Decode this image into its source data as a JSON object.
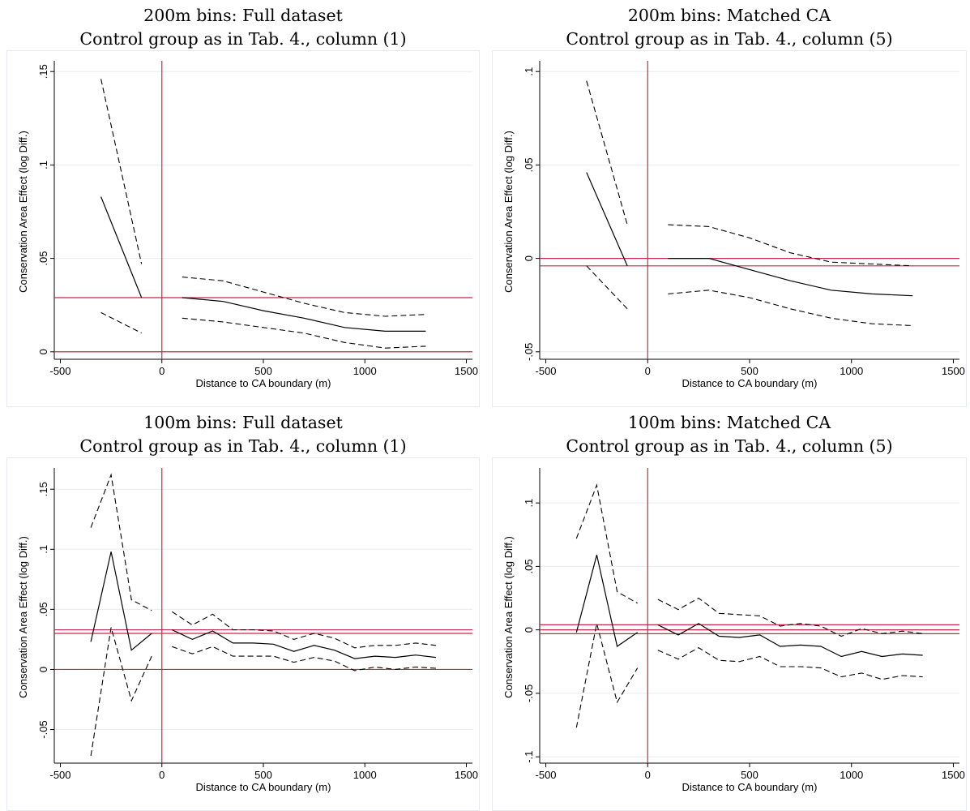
{
  "colors": {
    "accent": "#c8284b",
    "grid": "#e9ecf1",
    "line": "#000000"
  },
  "charts": [
    {
      "title": "200m bins: Full dataset",
      "subtitle": "Control group as in Tab. 4., column (1)",
      "chart_data": {
        "type": "line",
        "xlabel": "Distance to CA boundary (m)",
        "ylabel": "Conservation Area Effect (log Diff.)",
        "xlim": [
          -530,
          1530
        ],
        "ylim": [
          -0.004,
          0.154
        ],
        "xticks": [
          -500,
          0,
          500,
          1000,
          1500
        ],
        "yticks": [
          0,
          0.05,
          0.1,
          0.15
        ],
        "ytick_labels": [
          "0",
          ".05",
          ".1",
          ".15"
        ],
        "hlines": [
          0,
          0.029
        ],
        "vlines": [
          0
        ],
        "segments": [
          {
            "x": [
              -300,
              -100
            ],
            "estimate": [
              0.083,
              0.029
            ],
            "lower": [
              0.021,
              0.01
            ],
            "upper": [
              0.146,
              0.047
            ]
          },
          {
            "x": [
              100,
              300,
              500,
              700,
              900,
              1100,
              1300
            ],
            "estimate": [
              0.029,
              0.027,
              0.022,
              0.018,
              0.013,
              0.011,
              0.011
            ],
            "lower": [
              0.018,
              0.016,
              0.013,
              0.01,
              0.005,
              0.002,
              0.003
            ],
            "upper": [
              0.04,
              0.038,
              0.032,
              0.026,
              0.021,
              0.019,
              0.02
            ]
          }
        ]
      }
    },
    {
      "title": "200m bins: Matched CA",
      "subtitle": "Control group as in Tab. 4., column (5)",
      "chart_data": {
        "type": "line",
        "xlabel": "Distance to CA boundary (m)",
        "ylabel": "Conservation Area Effect (log Diff.)",
        "xlim": [
          -530,
          1530
        ],
        "ylim": [
          -0.054,
          0.104
        ],
        "xticks": [
          -500,
          0,
          500,
          1000,
          1500
        ],
        "yticks": [
          -0.05,
          0,
          0.05,
          0.1
        ],
        "ytick_labels": [
          "-.05",
          "0",
          ".05",
          ".1"
        ],
        "hlines": [
          0,
          -0.004
        ],
        "vlines": [
          0
        ],
        "segments": [
          {
            "x": [
              -300,
              -100
            ],
            "estimate": [
              0.046,
              -0.004
            ],
            "lower": [
              -0.004,
              -0.027
            ],
            "upper": [
              0.095,
              0.018
            ]
          },
          {
            "x": [
              100,
              300,
              500,
              700,
              900,
              1100,
              1300
            ],
            "estimate": [
              0.0,
              0.0,
              -0.006,
              -0.012,
              -0.017,
              -0.019,
              -0.02
            ],
            "lower": [
              -0.019,
              -0.017,
              -0.021,
              -0.027,
              -0.032,
              -0.035,
              -0.036
            ],
            "upper": [
              0.018,
              0.017,
              0.011,
              0.003,
              -0.002,
              -0.003,
              -0.004
            ]
          }
        ]
      }
    },
    {
      "title": "100m bins: Full dataset",
      "subtitle": "Control group as in Tab. 4., column (1)",
      "chart_data": {
        "type": "line",
        "xlabel": "Distance to CA boundary (m)",
        "ylabel": "Conservation Area Effect (log Diff.)",
        "xlim": [
          -530,
          1530
        ],
        "ylim": [
          -0.078,
          0.165
        ],
        "xticks": [
          -500,
          0,
          500,
          1000,
          1500
        ],
        "yticks": [
          -0.05,
          0,
          0.05,
          0.1,
          0.15
        ],
        "ytick_labels": [
          "-.05",
          "0",
          ".05",
          ".1",
          ".15"
        ],
        "hlines": [
          0,
          0.03,
          0.033
        ],
        "vlines": [
          0
        ],
        "segments": [
          {
            "x": [
              -350,
              -250,
              -150,
              -50
            ],
            "estimate": [
              0.023,
              0.098,
              0.016,
              0.03
            ],
            "lower": [
              -0.072,
              0.035,
              -0.026,
              0.011
            ],
            "upper": [
              0.118,
              0.162,
              0.058,
              0.049
            ]
          },
          {
            "x": [
              50,
              150,
              250,
              350,
              450,
              550,
              650,
              750,
              850,
              950,
              1050,
              1150,
              1250,
              1350
            ],
            "estimate": [
              0.033,
              0.025,
              0.032,
              0.022,
              0.022,
              0.021,
              0.015,
              0.02,
              0.016,
              0.009,
              0.011,
              0.01,
              0.012,
              0.01
            ],
            "lower": [
              0.019,
              0.013,
              0.019,
              0.011,
              0.011,
              0.011,
              0.006,
              0.01,
              0.007,
              -0.001,
              0.002,
              0.0,
              0.002,
              0.001
            ],
            "upper": [
              0.048,
              0.037,
              0.046,
              0.033,
              0.033,
              0.032,
              0.025,
              0.03,
              0.026,
              0.018,
              0.02,
              0.02,
              0.022,
              0.02
            ]
          }
        ]
      }
    },
    {
      "title": "100m bins: Matched CA",
      "subtitle": "Control group as in Tab. 4., column (5)",
      "chart_data": {
        "type": "line",
        "xlabel": "Distance to CA boundary (m)",
        "ylabel": "Conservation Area Effect (log Diff.)",
        "xlim": [
          -530,
          1530
        ],
        "ylim": [
          -0.105,
          0.125
        ],
        "xticks": [
          -500,
          0,
          500,
          1000,
          1500
        ],
        "yticks": [
          -0.1,
          -0.05,
          0,
          0.05,
          0.1
        ],
        "ytick_labels": [
          "-.1",
          "-.05",
          "0",
          ".05",
          ".1"
        ],
        "hlines": [
          0.004,
          0.0,
          -0.003
        ],
        "vlines": [
          0
        ],
        "segments": [
          {
            "x": [
              -350,
              -250,
              -150,
              -50
            ],
            "estimate": [
              -0.002,
              0.059,
              -0.013,
              -0.002
            ],
            "lower": [
              -0.077,
              0.005,
              -0.057,
              -0.03
            ],
            "upper": [
              0.072,
              0.114,
              0.03,
              0.021
            ]
          },
          {
            "x": [
              50,
              150,
              250,
              350,
              450,
              550,
              650,
              750,
              850,
              950,
              1050,
              1150,
              1250,
              1350
            ],
            "estimate": [
              0.004,
              -0.004,
              0.005,
              -0.005,
              -0.006,
              -0.004,
              -0.013,
              -0.012,
              -0.013,
              -0.021,
              -0.017,
              -0.021,
              -0.019,
              -0.02
            ],
            "lower": [
              -0.016,
              -0.023,
              -0.014,
              -0.024,
              -0.025,
              -0.021,
              -0.029,
              -0.029,
              -0.03,
              -0.037,
              -0.034,
              -0.039,
              -0.036,
              -0.037
            ],
            "upper": [
              0.024,
              0.016,
              0.025,
              0.013,
              0.012,
              0.011,
              0.003,
              0.005,
              0.003,
              -0.005,
              0.001,
              -0.003,
              -0.001,
              -0.003
            ]
          }
        ]
      }
    }
  ]
}
